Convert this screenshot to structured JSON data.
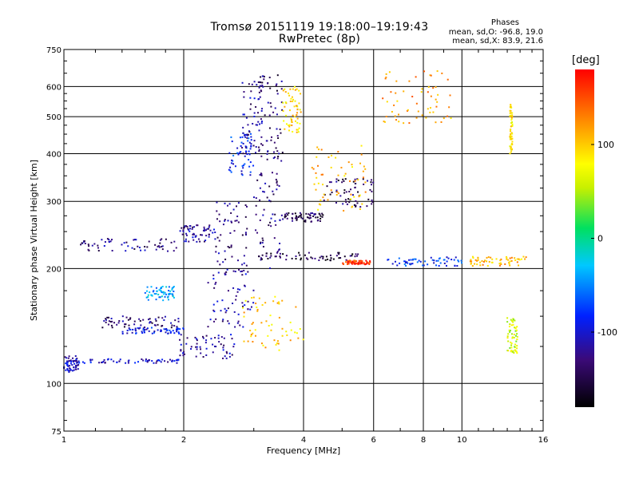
{
  "header": {
    "title_line1": "Tromsø 20151119 19:18:00–19:19:43",
    "title_line2": "RwPretec (8p)"
  },
  "stats": {
    "title": "Phases",
    "line_o": "mean, sd,O: -96.8, 19.0",
    "line_x": "mean, sd,X: 83.9, 21.6"
  },
  "colorbar": {
    "unit": "[deg]",
    "ticks": [
      {
        "label": "100",
        "value": 100
      },
      {
        "label": "0",
        "value": 0
      },
      {
        "label": "-100",
        "value": -100
      }
    ],
    "range": [
      -180,
      180
    ]
  },
  "chart_data": {
    "type": "scatter",
    "xlabel": "Frequency [MHz]",
    "ylabel": "Stationary phase Virtual Height [km]",
    "xscale": "log",
    "yscale": "log",
    "xlim": [
      1,
      16
    ],
    "ylim": [
      75,
      750
    ],
    "xticks": [
      1,
      2,
      4,
      6,
      8,
      10,
      16
    ],
    "yticks": [
      75,
      100,
      200,
      300,
      400,
      500,
      600,
      750
    ],
    "grid": true,
    "color_variable": "phase [deg]",
    "clusters": [
      {
        "x": [
          1.0,
          1.09
        ],
        "y": [
          107,
          118
        ],
        "phase": -110
      },
      {
        "x": [
          1.09,
          1.95
        ],
        "y": [
          113,
          116
        ],
        "phase": -105
      },
      {
        "x": [
          1.95,
          2.7
        ],
        "y": [
          116,
          135
        ],
        "phase": -115
      },
      {
        "x": [
          1.4,
          2.0
        ],
        "y": [
          135,
          140
        ],
        "phase": -95
      },
      {
        "x": [
          1.25,
          2.0
        ],
        "y": [
          140,
          150
        ],
        "phase": -130
      },
      {
        "x": [
          1.6,
          1.9
        ],
        "y": [
          165,
          180
        ],
        "phase": -40
      },
      {
        "x": [
          1.1,
          1.95
        ],
        "y": [
          222,
          240
        ],
        "phase": -125
      },
      {
        "x": [
          1.95,
          2.4
        ],
        "y": [
          235,
          260
        ],
        "phase": -120
      },
      {
        "x": [
          2.3,
          3.0
        ],
        "y": [
          140,
          200
        ],
        "phase": -115
      },
      {
        "x": [
          2.4,
          2.9
        ],
        "y": [
          195,
          300
        ],
        "phase": -125
      },
      {
        "x": [
          2.6,
          3.0
        ],
        "y": [
          350,
          460
        ],
        "phase": -85
      },
      {
        "x": [
          2.8,
          3.2
        ],
        "y": [
          400,
          620
        ],
        "phase": -120
      },
      {
        "x": [
          3.1,
          3.55
        ],
        "y": [
          380,
          650
        ],
        "phase": -135
      },
      {
        "x": [
          3.0,
          3.5
        ],
        "y": [
          200,
          360
        ],
        "phase": -130
      },
      {
        "x": [
          3.5,
          4.5
        ],
        "y": [
          265,
          280
        ],
        "phase": -145
      },
      {
        "x": [
          4.5,
          6.0
        ],
        "y": [
          290,
          345
        ],
        "phase": -140
      },
      {
        "x": [
          3.55,
          3.95
        ],
        "y": [
          450,
          600
        ],
        "phase": 95
      },
      {
        "x": [
          2.8,
          4.0
        ],
        "y": [
          122,
          170
        ],
        "phase": 100
      },
      {
        "x": [
          4.2,
          5.8
        ],
        "y": [
          280,
          420
        ],
        "phase": 105
      },
      {
        "x": [
          3.0,
          5.5
        ],
        "y": [
          210,
          220
        ],
        "phase": -150
      },
      {
        "x": [
          5.0,
          5.9
        ],
        "y": [
          205,
          210
        ],
        "phase": 160
      },
      {
        "x": [
          6.3,
          9.4
        ],
        "y": [
          480,
          660
        ],
        "phase": 120
      },
      {
        "x": [
          6.5,
          10.0
        ],
        "y": [
          203,
          215
        ],
        "phase": -80
      },
      {
        "x": [
          10.5,
          14.5
        ],
        "y": [
          203,
          215
        ],
        "phase": 110
      },
      {
        "x": [
          13.2,
          13.4
        ],
        "y": [
          400,
          540
        ],
        "phase": 90
      },
      {
        "x": [
          13.0,
          13.8
        ],
        "y": [
          120,
          150
        ],
        "phase": 60
      }
    ]
  }
}
